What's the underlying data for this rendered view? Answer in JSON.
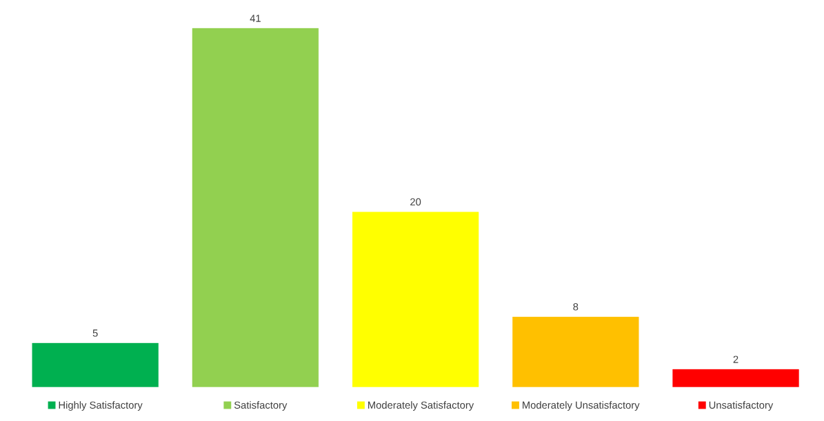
{
  "chart_data": {
    "type": "bar",
    "categories": [
      "Highly Satisfactory",
      "Satisfactory",
      "Moderately Satisfactory",
      "Moderately Unsatisfactory",
      "Unsatisfactory"
    ],
    "values": [
      5,
      41,
      20,
      8,
      2
    ],
    "colors": [
      "#00b050",
      "#92d050",
      "#ffff00",
      "#ffc000",
      "#ff0000"
    ],
    "data_labels": true
  }
}
